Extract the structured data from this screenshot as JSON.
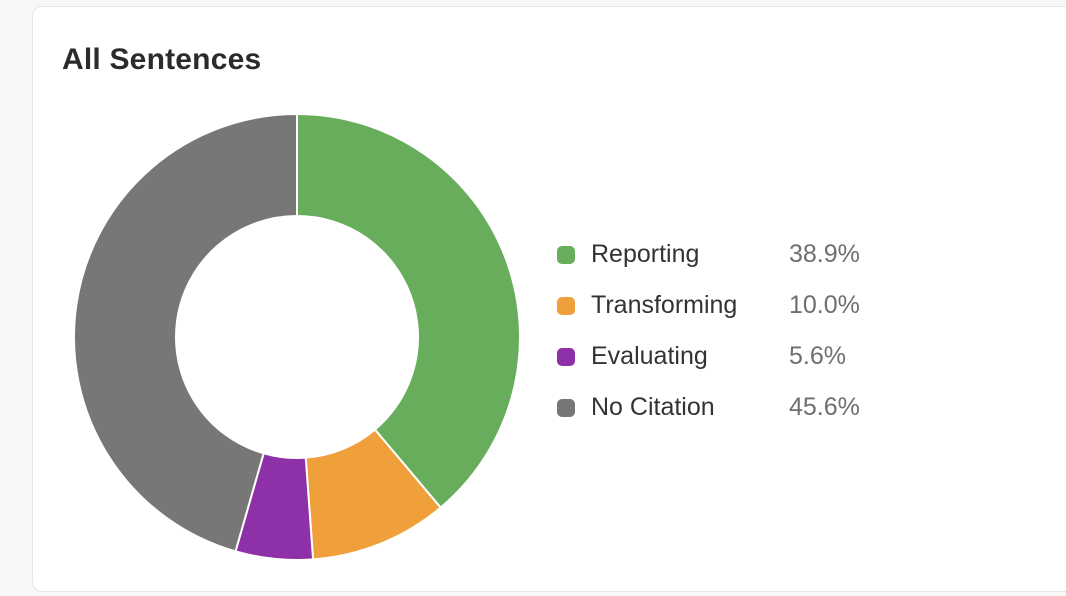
{
  "card": {
    "title": "All Sentences"
  },
  "chart_data": {
    "type": "pie",
    "title": "All Sentences",
    "donut": true,
    "legend_position": "right",
    "slices": [
      {
        "label": "Reporting",
        "value": 38.9,
        "display": "38.9%",
        "color": "#68ad5c"
      },
      {
        "label": "Transforming",
        "value": 10.0,
        "display": "10.0%",
        "color": "#f0a03a"
      },
      {
        "label": "Evaluating",
        "value": 5.6,
        "display": "5.6%",
        "color": "#8e30a8"
      },
      {
        "label": "No Citation",
        "value": 45.6,
        "display": "45.6%",
        "color": "#777777"
      }
    ]
  }
}
